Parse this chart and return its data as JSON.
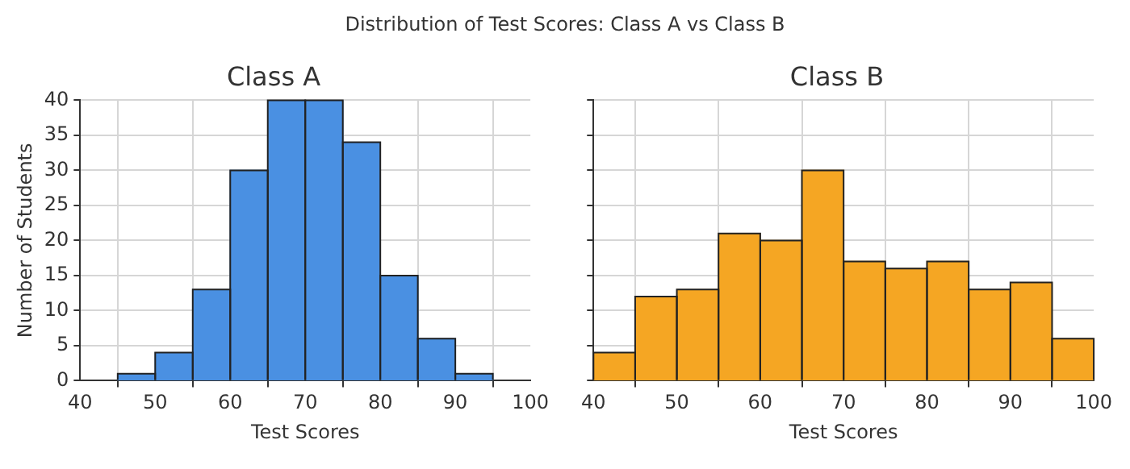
{
  "chart_data": [
    {
      "type": "histogram",
      "title": "Class A",
      "xlabel": "Test Scores",
      "ylabel": "Number of Students",
      "annotations": [
        "Distribution of Test Scores: Class A vs Class B"
      ],
      "bins": [
        45,
        50,
        55,
        60,
        65,
        70,
        75,
        80,
        85,
        90,
        95
      ],
      "values": [
        1,
        4,
        13,
        30,
        40,
        40,
        34,
        15,
        6,
        1
      ],
      "color": "#4a90e2",
      "xlim": [
        40,
        100
      ],
      "xticks": [
        40,
        50,
        60,
        70,
        80,
        90,
        100
      ],
      "ylim": [
        0,
        40
      ],
      "yticks": [
        0,
        5,
        10,
        15,
        20,
        25,
        30,
        35,
        40
      ],
      "grid": true
    },
    {
      "type": "histogram",
      "title": "Class B",
      "xlabel": "Test Scores",
      "bins": [
        40,
        45,
        50,
        55,
        60,
        65,
        70,
        75,
        80,
        85,
        90,
        95,
        100
      ],
      "values": [
        4,
        12,
        13,
        21,
        20,
        30,
        17,
        16,
        17,
        13,
        14,
        6
      ],
      "color": "#f5a623",
      "xlim": [
        40,
        100
      ],
      "xticks": [
        40,
        50,
        60,
        70,
        80,
        90,
        100
      ],
      "ylim": [
        0,
        40
      ],
      "yticks": [
        0,
        5,
        10,
        15,
        20,
        25,
        30,
        35,
        40
      ],
      "grid": true,
      "tick_labels": "x"
    }
  ]
}
